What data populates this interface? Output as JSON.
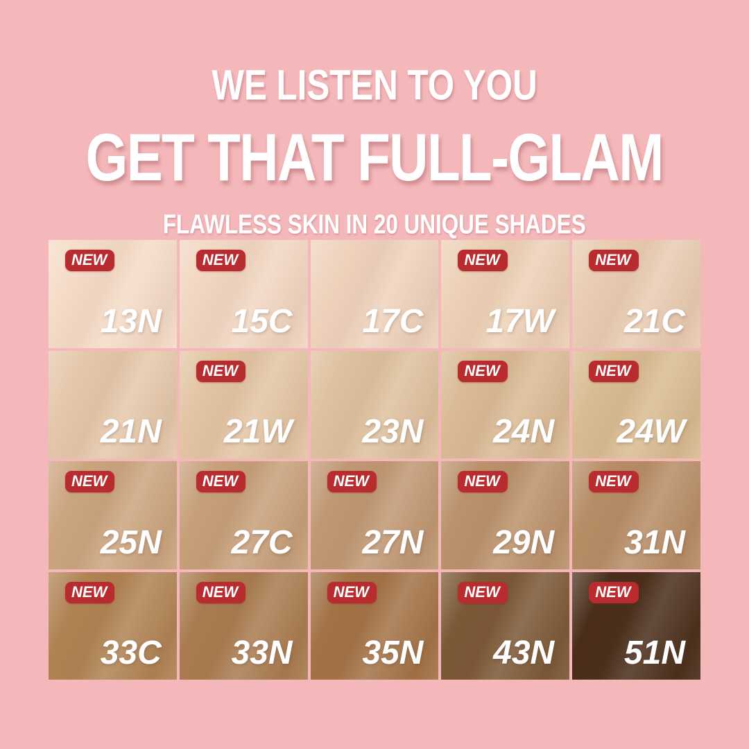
{
  "page": {
    "background_color": "#f4b8bb",
    "badge_color": "#b82b2e",
    "text_color": "#ffffff"
  },
  "header": {
    "line1": "WE LISTEN TO YOU",
    "line2": "GET THAT FULL-GLAM",
    "line3": "FLAWLESS SKIN IN 20 UNIQUE SHADES"
  },
  "badge": {
    "label": "NEW"
  },
  "shades": {
    "columns": 5,
    "rows": 4,
    "cells": [
      {
        "code": "13N",
        "color": "#f5dcc8",
        "is_new": true
      },
      {
        "code": "15C",
        "color": "#f2d7c2",
        "is_new": true
      },
      {
        "code": "17C",
        "color": "#efd3bd",
        "is_new": false
      },
      {
        "code": "17W",
        "color": "#edd1b7",
        "is_new": true
      },
      {
        "code": "21C",
        "color": "#e9ccb2",
        "is_new": true
      },
      {
        "code": "21N",
        "color": "#e5c8ab",
        "is_new": false
      },
      {
        "code": "21W",
        "color": "#e3c5a4",
        "is_new": true
      },
      {
        "code": "23N",
        "color": "#dec19e",
        "is_new": false
      },
      {
        "code": "24N",
        "color": "#dabb96",
        "is_new": true
      },
      {
        "code": "24W",
        "color": "#d9bc92",
        "is_new": true
      },
      {
        "code": "25N",
        "color": "#cba57f",
        "is_new": true
      },
      {
        "code": "27C",
        "color": "#c7a07a",
        "is_new": true
      },
      {
        "code": "27N",
        "color": "#c09873",
        "is_new": true
      },
      {
        "code": "29N",
        "color": "#bb926c",
        "is_new": true
      },
      {
        "code": "31N",
        "color": "#b78d66",
        "is_new": true
      },
      {
        "code": "33C",
        "color": "#b08354",
        "is_new": true
      },
      {
        "code": "33N",
        "color": "#a97c50",
        "is_new": true
      },
      {
        "code": "35N",
        "color": "#a37347",
        "is_new": true
      },
      {
        "code": "43N",
        "color": "#7b5836",
        "is_new": true
      },
      {
        "code": "51N",
        "color": "#4a2e1b",
        "is_new": true
      }
    ]
  }
}
